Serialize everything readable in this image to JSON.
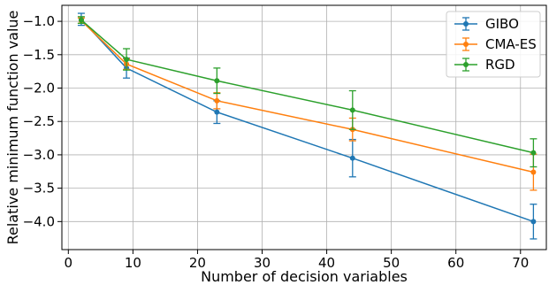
{
  "chart_data": {
    "type": "line",
    "title": "",
    "xlabel": "Number of decision variables",
    "ylabel": "Relative minimum function value",
    "xlim": [
      -1,
      74
    ],
    "ylim": [
      -4.42,
      -0.76
    ],
    "xticks": [
      0,
      10,
      20,
      30,
      40,
      50,
      60,
      70
    ],
    "xtick_labels": [
      "0",
      "10",
      "20",
      "30",
      "40",
      "50",
      "60",
      "70"
    ],
    "yticks": [
      -1.0,
      -1.5,
      -2.0,
      -2.5,
      -3.0,
      -3.5,
      -4.0
    ],
    "ytick_labels": [
      "−1.0",
      "−1.5",
      "−2.0",
      "−2.5",
      "−3.0",
      "−3.5",
      "−4.0"
    ],
    "grid": true,
    "legend_position": "top-right",
    "x": [
      2,
      9,
      23,
      44,
      72
    ],
    "series": [
      {
        "name": "GIBO",
        "color": "#1f77b4",
        "values": [
          -0.97,
          -1.7,
          -2.36,
          -3.05,
          -4.0
        ],
        "errors": [
          0.09,
          0.15,
          0.17,
          0.28,
          0.26
        ]
      },
      {
        "name": "CMA-ES",
        "color": "#ff7f0e",
        "values": [
          -0.99,
          -1.64,
          -2.19,
          -2.62,
          -3.26
        ],
        "errors": [
          0.04,
          0.08,
          0.12,
          0.17,
          0.27
        ]
      },
      {
        "name": "RGD",
        "color": "#2ca02c",
        "values": [
          -0.98,
          -1.57,
          -1.89,
          -2.33,
          -2.97
        ],
        "errors": [
          0.05,
          0.16,
          0.19,
          0.29,
          0.21
        ]
      }
    ]
  }
}
